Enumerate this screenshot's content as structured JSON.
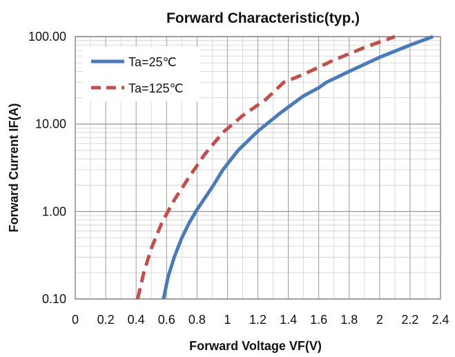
{
  "chart_data": {
    "type": "line",
    "title": "Forward Characteristic(typ.)",
    "xlabel": "Forward Voltage VF(V)",
    "ylabel": "Forward Current IF(A)",
    "xlim": [
      0,
      2.4
    ],
    "ylim": [
      0.1,
      100
    ],
    "y_scale": "log",
    "grid": true,
    "legend_position": "top-left",
    "x_ticks": [
      "0",
      "0.2",
      "0.4",
      "0.6",
      "0.8",
      "1",
      "1.2",
      "1.4",
      "1.6",
      "1.8",
      "2",
      "2.2",
      "2.4"
    ],
    "y_ticks": [
      "0.10",
      "1.00",
      "10.00",
      "100.00"
    ],
    "series": [
      {
        "name": "Ta=25℃",
        "color": "#4a7ab8",
        "style": "solid",
        "x": [
          0.58,
          0.61,
          0.65,
          0.7,
          0.75,
          0.8,
          0.9,
          0.97,
          1.07,
          1.2,
          1.35,
          1.5,
          1.6,
          1.65,
          1.8,
          2.0,
          2.2,
          2.35
        ],
        "y": [
          0.1,
          0.18,
          0.3,
          0.5,
          0.75,
          1.05,
          1.9,
          3.0,
          5.0,
          8.3,
          13.5,
          21.0,
          26.0,
          30.0,
          40.0,
          58.0,
          80.0,
          100.0
        ]
      },
      {
        "name": "Ta=125℃",
        "color": "#c0504d",
        "style": "dashed",
        "x": [
          0.41,
          0.45,
          0.5,
          0.57,
          0.65,
          0.75,
          0.85,
          0.97,
          1.1,
          1.25,
          1.37,
          1.5,
          1.7,
          1.9,
          2.1
        ],
        "y": [
          0.1,
          0.2,
          0.38,
          0.75,
          1.35,
          2.5,
          4.5,
          8.0,
          12.5,
          19.0,
          30.0,
          37.0,
          54.0,
          75.0,
          100.0
        ]
      }
    ]
  }
}
